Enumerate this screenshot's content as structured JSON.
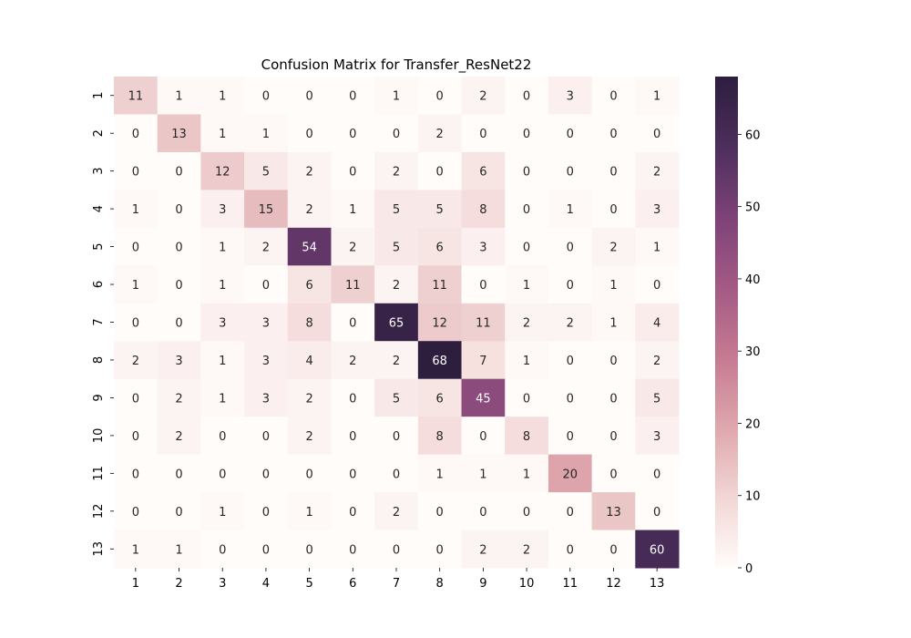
{
  "chart_data": {
    "type": "heatmap",
    "title": "Confusion Matrix for Transfer_ResNet22",
    "xlabel": "",
    "ylabel": "",
    "x_tick_labels": [
      "1",
      "2",
      "3",
      "4",
      "5",
      "6",
      "7",
      "8",
      "9",
      "10",
      "11",
      "12",
      "13"
    ],
    "y_tick_labels": [
      "1",
      "2",
      "3",
      "4",
      "5",
      "6",
      "7",
      "8",
      "9",
      "10",
      "11",
      "12",
      "13"
    ],
    "matrix": [
      [
        11,
        1,
        1,
        0,
        0,
        0,
        1,
        0,
        2,
        0,
        3,
        0,
        1
      ],
      [
        0,
        13,
        1,
        1,
        0,
        0,
        0,
        2,
        0,
        0,
        0,
        0,
        0
      ],
      [
        0,
        0,
        12,
        5,
        2,
        0,
        2,
        0,
        6,
        0,
        0,
        0,
        2
      ],
      [
        1,
        0,
        3,
        15,
        2,
        1,
        5,
        5,
        8,
        0,
        1,
        0,
        3
      ],
      [
        0,
        0,
        1,
        2,
        54,
        2,
        5,
        6,
        3,
        0,
        0,
        2,
        1
      ],
      [
        1,
        0,
        1,
        0,
        6,
        11,
        2,
        11,
        0,
        1,
        0,
        1,
        0
      ],
      [
        0,
        0,
        3,
        3,
        8,
        0,
        65,
        12,
        11,
        2,
        2,
        1,
        4
      ],
      [
        2,
        3,
        1,
        3,
        4,
        2,
        2,
        68,
        7,
        1,
        0,
        0,
        2
      ],
      [
        0,
        2,
        1,
        3,
        2,
        0,
        5,
        6,
        45,
        0,
        0,
        0,
        5
      ],
      [
        0,
        2,
        0,
        0,
        2,
        0,
        0,
        8,
        0,
        8,
        0,
        0,
        3
      ],
      [
        0,
        0,
        0,
        0,
        0,
        0,
        0,
        1,
        1,
        1,
        20,
        0,
        0
      ],
      [
        0,
        0,
        1,
        0,
        1,
        0,
        2,
        0,
        0,
        0,
        0,
        13,
        0
      ],
      [
        1,
        1,
        0,
        0,
        0,
        0,
        0,
        0,
        2,
        2,
        0,
        0,
        60
      ]
    ],
    "vmin": 0,
    "vmax": 68,
    "colorbar_ticks": [
      0,
      10,
      20,
      30,
      40,
      50,
      60
    ],
    "colormap": [
      "#fffcfa",
      "#f2d6d5",
      "#dea7ad",
      "#c57a92",
      "#a35a84",
      "#7d4278",
      "#4d2e5c",
      "#2d1e3e"
    ],
    "grid": false,
    "annotations": true,
    "colorbar": true
  }
}
